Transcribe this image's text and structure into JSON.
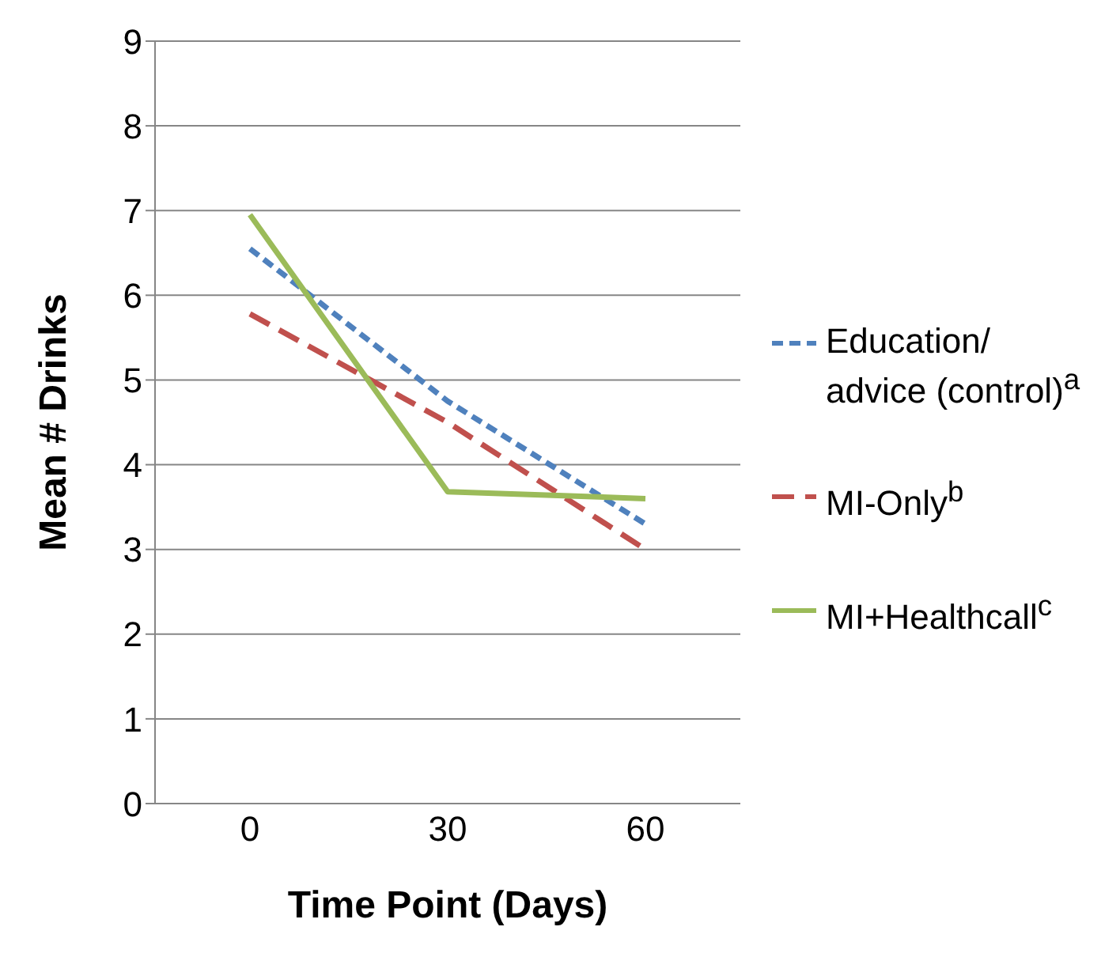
{
  "chart_data": {
    "type": "line",
    "xlabel": "Time Point (Days)",
    "ylabel": "Mean # Drinks",
    "categories": [
      "0",
      "30",
      "60"
    ],
    "series": [
      {
        "name": "Education/ advice (control)$^{a}$",
        "color": "#4f81bd",
        "line_style": "dashed",
        "values": [
          6.55,
          4.75,
          3.3
        ]
      },
      {
        "name": "MI-Only$^{b}$",
        "color": "#c0504d",
        "line_style": "dashed",
        "values": [
          5.78,
          4.5,
          3.0
        ]
      },
      {
        "name": "MI+Healthcall$^{c}$",
        "color": "#9bbb59",
        "line_style": "solid",
        "values": [
          6.95,
          3.68,
          3.6
        ]
      }
    ],
    "ylim": [
      0,
      9
    ],
    "yticks": [
      0,
      1,
      2,
      3,
      4,
      5,
      6,
      7,
      8,
      9
    ],
    "grid": "y",
    "legend": "right",
    "marker": "none"
  }
}
